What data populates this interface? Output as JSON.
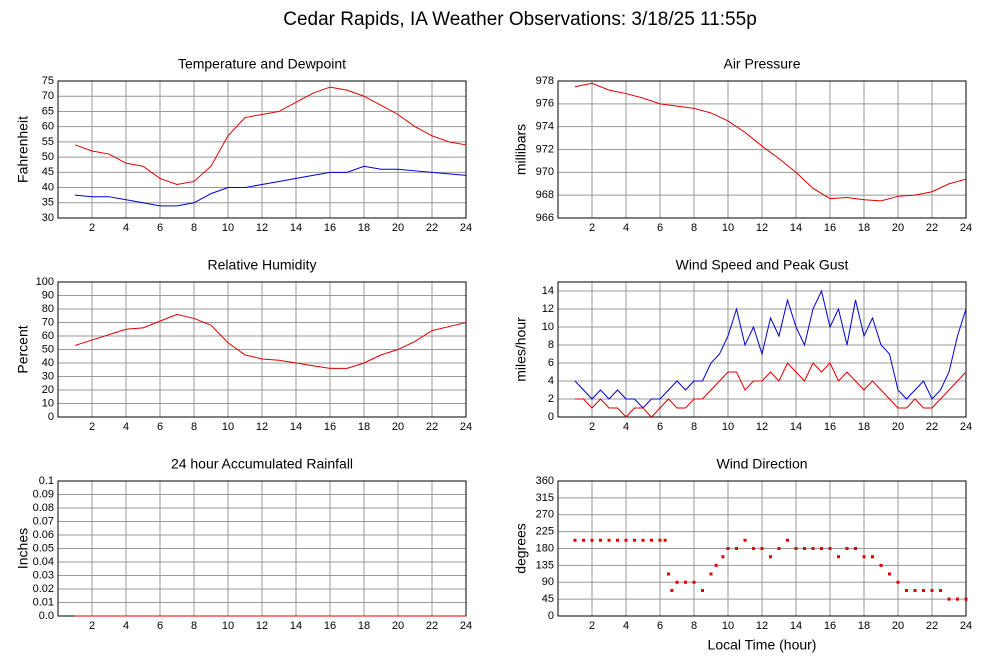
{
  "title": "Cedar Rapids, IA Weather Observations: 3/18/25 11:55p",
  "chart_data": [
    {
      "type": "line",
      "title": "Temperature and Dewpoint",
      "ylabel": "Fahrenheit",
      "x": [
        1,
        2,
        3,
        4,
        5,
        6,
        7,
        8,
        9,
        10,
        11,
        12,
        13,
        14,
        15,
        16,
        17,
        18,
        19,
        20,
        21,
        22,
        23,
        24
      ],
      "series": [
        {
          "color": "#e00000",
          "values": [
            54,
            52,
            51,
            48,
            47,
            43,
            41,
            42,
            47,
            57,
            63,
            64,
            65,
            68,
            71,
            73,
            72,
            70,
            67,
            64,
            60,
            57,
            55,
            54
          ]
        },
        {
          "color": "#0000d0",
          "values": [
            37.5,
            37,
            37,
            36,
            35,
            34,
            34,
            35,
            38,
            40,
            40,
            41,
            42,
            43,
            44,
            45,
            45,
            47,
            46,
            46,
            45.5,
            45,
            44.5,
            44
          ]
        }
      ],
      "xlim": [
        0,
        24
      ],
      "xticks": [
        2,
        4,
        6,
        8,
        10,
        12,
        14,
        16,
        18,
        20,
        22,
        24
      ],
      "ylim": [
        30,
        75
      ],
      "yticks": [
        30,
        35,
        40,
        45,
        50,
        55,
        60,
        65,
        70,
        75
      ],
      "grid": true
    },
    {
      "type": "line",
      "title": "Air Pressure",
      "ylabel": "millibars",
      "x": [
        1,
        2,
        3,
        4,
        5,
        6,
        7,
        8,
        9,
        10,
        11,
        12,
        13,
        14,
        15,
        16,
        17,
        18,
        19,
        20,
        21,
        22,
        23,
        24
      ],
      "series": [
        {
          "color": "#e00000",
          "values": [
            977.5,
            977.8,
            977.2,
            976.9,
            976.5,
            976,
            975.8,
            975.6,
            975.2,
            974.5,
            973.5,
            972.3,
            971.2,
            970,
            968.6,
            967.7,
            967.8,
            967.6,
            967.5,
            967.9,
            968,
            968.3,
            969,
            969.4
          ]
        }
      ],
      "xlim": [
        0,
        24
      ],
      "xticks": [
        2,
        4,
        6,
        8,
        10,
        12,
        14,
        16,
        18,
        20,
        22,
        24
      ],
      "ylim": [
        966,
        978
      ],
      "yticks": [
        966,
        968,
        970,
        972,
        974,
        976,
        978
      ],
      "grid": true
    },
    {
      "type": "line",
      "title": "Relative Humidity",
      "ylabel": "Percent",
      "x": [
        1,
        2,
        3,
        4,
        5,
        6,
        7,
        8,
        9,
        10,
        11,
        12,
        13,
        14,
        15,
        16,
        17,
        18,
        19,
        20,
        21,
        22,
        23,
        24
      ],
      "series": [
        {
          "color": "#e00000",
          "values": [
            53,
            57,
            61,
            65,
            66,
            71,
            76,
            73,
            68,
            55,
            46,
            43,
            42,
            40,
            38,
            36,
            36,
            40,
            46,
            50,
            56,
            64,
            67,
            70
          ]
        }
      ],
      "xlim": [
        0,
        24
      ],
      "xticks": [
        2,
        4,
        6,
        8,
        10,
        12,
        14,
        16,
        18,
        20,
        22,
        24
      ],
      "ylim": [
        0,
        100
      ],
      "yticks": [
        0,
        10,
        20,
        30,
        40,
        50,
        60,
        70,
        80,
        90,
        100
      ],
      "grid": true
    },
    {
      "type": "line",
      "title": "Wind Speed and Peak Gust",
      "ylabel": "miles/hour",
      "x": [
        1,
        1.5,
        2,
        2.5,
        3,
        3.5,
        4,
        4.5,
        5,
        5.5,
        6,
        6.5,
        7,
        7.5,
        8,
        8.5,
        9,
        9.5,
        10,
        10.5,
        11,
        11.5,
        12,
        12.5,
        13,
        13.5,
        14,
        14.5,
        15,
        15.5,
        16,
        16.5,
        17,
        17.5,
        18,
        18.5,
        19,
        19.5,
        20,
        20.5,
        21,
        21.5,
        22,
        22.5,
        23,
        23.5,
        24
      ],
      "series": [
        {
          "color": "#0000d0",
          "values": [
            4,
            3,
            2,
            3,
            2,
            3,
            2,
            2,
            1,
            2,
            2,
            3,
            4,
            3,
            4,
            4,
            6,
            7,
            9,
            12,
            8,
            10,
            7,
            11,
            9,
            13,
            10,
            8,
            12,
            14,
            10,
            12,
            8,
            13,
            9,
            11,
            8,
            7,
            3,
            2,
            3,
            4,
            2,
            3,
            5,
            9,
            12
          ]
        },
        {
          "color": "#e00000",
          "values": [
            2,
            2,
            1,
            2,
            1,
            1,
            0,
            1,
            1,
            0,
            1,
            2,
            1,
            1,
            2,
            2,
            3,
            4,
            5,
            5,
            3,
            4,
            4,
            5,
            4,
            6,
            5,
            4,
            6,
            5,
            6,
            4,
            5,
            4,
            3,
            4,
            3,
            2,
            1,
            1,
            2,
            1,
            1,
            2,
            3,
            4,
            5
          ]
        }
      ],
      "xlim": [
        0,
        24
      ],
      "xticks": [
        2,
        4,
        6,
        8,
        10,
        12,
        14,
        16,
        18,
        20,
        22,
        24
      ],
      "ylim": [
        0,
        15
      ],
      "yticks": [
        0,
        2,
        4,
        6,
        8,
        10,
        12,
        14
      ],
      "grid": true
    },
    {
      "type": "line",
      "title": "24 hour Accumulated Rainfall",
      "ylabel": "Inches",
      "x": [
        1,
        24
      ],
      "series": [
        {
          "color": "#e00000",
          "values": [
            0,
            0
          ]
        }
      ],
      "xlim": [
        0,
        24
      ],
      "xticks": [
        2,
        4,
        6,
        8,
        10,
        12,
        14,
        16,
        18,
        20,
        22,
        24
      ],
      "ylim": [
        0,
        0.1
      ],
      "yticks": [
        {
          "value": 0,
          "label": "0.0"
        },
        0.01,
        0.02,
        0.03,
        0.04,
        0.05,
        0.06,
        0.07,
        0.08,
        0.09,
        0.1
      ],
      "grid": true
    },
    {
      "type": "scatter",
      "title": "Wind Direction",
      "ylabel": "degrees",
      "xlabel": "Local Time (hour)",
      "x": [
        1,
        1.5,
        2,
        2.5,
        3,
        3.5,
        4,
        4.5,
        5,
        5.5,
        6,
        6.3,
        6.5,
        6.7,
        7,
        7.5,
        8,
        8.5,
        9,
        9.3,
        9.7,
        10,
        10.5,
        11,
        11.5,
        12,
        12.5,
        13,
        13.5,
        14,
        14.5,
        15,
        15.5,
        16,
        16.5,
        17,
        17.5,
        18,
        18.5,
        19,
        19.5,
        20,
        20.5,
        21,
        21.5,
        22,
        22.5,
        23,
        23.5,
        24
      ],
      "series": [
        {
          "color": "#e00000",
          "values": [
            202,
            202,
            202,
            202,
            202,
            202,
            202,
            202,
            202,
            202,
            202,
            202,
            112,
            68,
            90,
            90,
            90,
            68,
            112,
            135,
            158,
            180,
            180,
            202,
            180,
            180,
            158,
            180,
            202,
            180,
            180,
            180,
            180,
            180,
            158,
            180,
            180,
            158,
            158,
            135,
            112,
            90,
            68,
            68,
            68,
            68,
            68,
            45,
            45,
            45
          ]
        }
      ],
      "xlim": [
        0,
        24
      ],
      "xticks": [
        2,
        4,
        6,
        8,
        10,
        12,
        14,
        16,
        18,
        20,
        22,
        24
      ],
      "ylim": [
        0,
        360
      ],
      "yticks": [
        0,
        45,
        90,
        135,
        180,
        225,
        270,
        315,
        360
      ],
      "grid": true
    }
  ]
}
